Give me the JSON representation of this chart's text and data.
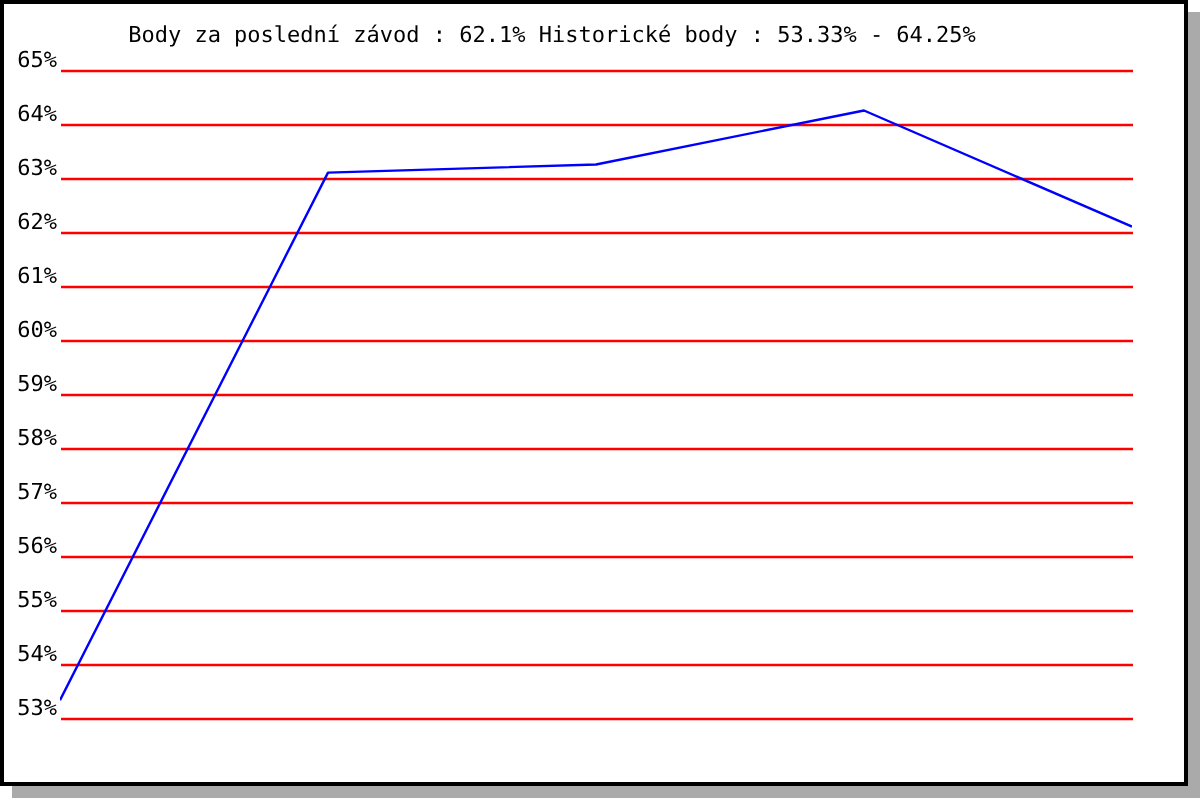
{
  "chart_data": {
    "type": "line",
    "title": "Body za poslední závod : 62.1%  Historické body : 53.33% - 64.25%",
    "categories": [
      null,
      null,
      null,
      null,
      null
    ],
    "series": [
      {
        "color": "#0000ff",
        "values": [
          53.33,
          63.1,
          63.25,
          64.25,
          62.1
        ]
      }
    ],
    "ylim": [
      53,
      65
    ],
    "yticks": [
      {
        "value": 53,
        "label": "53%"
      },
      {
        "value": 54,
        "label": "54%"
      },
      {
        "value": 55,
        "label": "55%"
      },
      {
        "value": 56,
        "label": "56%"
      },
      {
        "value": 57,
        "label": "57%"
      },
      {
        "value": 58,
        "label": "58%"
      },
      {
        "value": 59,
        "label": "59%"
      },
      {
        "value": 60,
        "label": "60%"
      },
      {
        "value": 61,
        "label": "61%"
      },
      {
        "value": 62,
        "label": "62%"
      },
      {
        "value": 63,
        "label": "63%"
      },
      {
        "value": 64,
        "label": "64%"
      },
      {
        "value": 65,
        "label": "65%"
      }
    ],
    "grid": "y",
    "tick_labels": "y"
  }
}
